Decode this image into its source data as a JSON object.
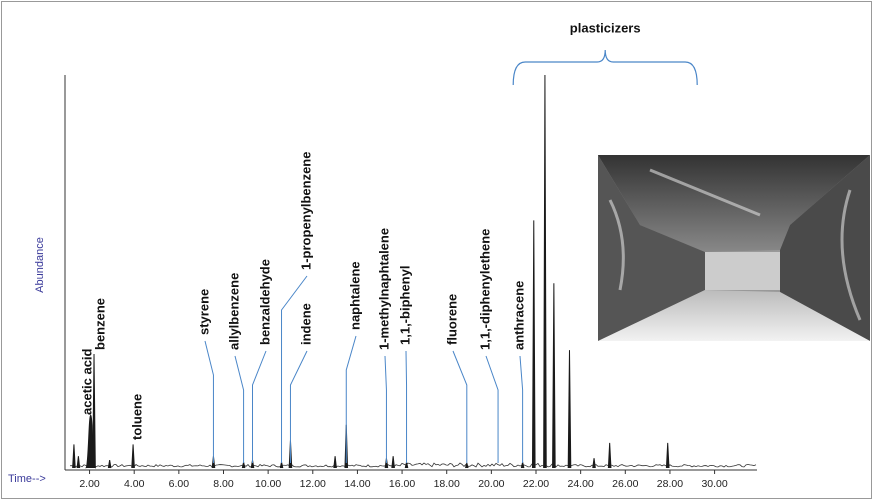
{
  "chart_data": {
    "type": "peaks",
    "ylabel": "Abundance",
    "xlabel": "Time-->",
    "x": [
      1.3,
      1.5,
      2.05,
      2.2,
      2.9,
      3.95,
      7.55,
      8.9,
      9.3,
      10.6,
      11.0,
      13.0,
      13.5,
      15.3,
      15.6,
      16.2,
      18.9,
      21.4,
      21.9,
      22.4,
      22.8,
      23.5,
      24.6,
      25.3,
      27.9
    ],
    "values": [
      6,
      3,
      13.5,
      29,
      2,
      6,
      3,
      1.5,
      2,
      1.5,
      7,
      3,
      11,
      2.5,
      3,
      1.5,
      1.3,
      1.5,
      63,
      100,
      47,
      30,
      2.5,
      6.4,
      6.4
    ],
    "color": "#1a1a1a",
    "xlim": [
      0.9,
      31.9
    ],
    "ylim": [
      0,
      100
    ],
    "xticks": [
      {
        "value": 2,
        "label": "2.00"
      },
      {
        "value": 4,
        "label": "4.00"
      },
      {
        "value": 6,
        "label": "6.00"
      },
      {
        "value": 8,
        "label": "8.00"
      },
      {
        "value": 10,
        "label": "10.00"
      },
      {
        "value": 12,
        "label": "12.00"
      },
      {
        "value": 14,
        "label": "14.00"
      },
      {
        "value": 16,
        "label": "16.00"
      },
      {
        "value": 18,
        "label": "18.00"
      },
      {
        "value": 20,
        "label": "20.00"
      },
      {
        "value": 22,
        "label": "22.00"
      },
      {
        "value": 24,
        "label": "24.00"
      },
      {
        "value": 26,
        "label": "26.00"
      },
      {
        "value": 28,
        "label": "28.00"
      },
      {
        "value": 30,
        "label": "30.00"
      }
    ],
    "annotations": [
      {
        "text": "acetic acid",
        "x": 2.05
      },
      {
        "text": "benzene",
        "x": 2.2
      },
      {
        "text": "toluene",
        "x": 3.95
      },
      {
        "text": "styrene",
        "x": 7.55
      },
      {
        "text": "allylbenzene",
        "x": 8.9
      },
      {
        "text": "benzaldehyde",
        "x": 9.3
      },
      {
        "text": "1-propenylbenzene",
        "x": 10.6
      },
      {
        "text": "indene",
        "x": 11.0
      },
      {
        "text": "naphtalene",
        "x": 13.5
      },
      {
        "text": "1-methylnaphtalene",
        "x": 15.3
      },
      {
        "text": "1,1,-biphenyl",
        "x": 16.2
      },
      {
        "text": "fluorene",
        "x": 18.9
      },
      {
        "text": "1,1,-diphenylethene",
        "x": 20.3
      },
      {
        "text": "anthracene",
        "x": 21.4
      },
      {
        "text": "plasticizers",
        "x": 25.1
      }
    ]
  }
}
